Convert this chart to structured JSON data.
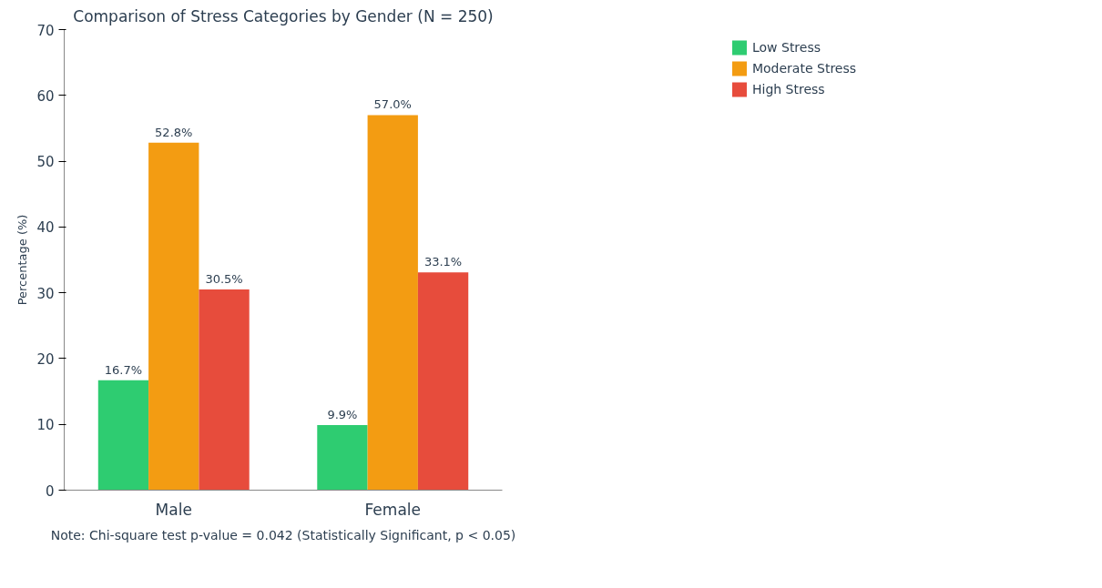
{
  "chart_data": {
    "type": "bar",
    "title": "Comparison of Stress Categories by Gender (N = 250)",
    "ylabel": "Percentage (%)",
    "categories": [
      "Male",
      "Female"
    ],
    "series": [
      {
        "name": "Low Stress",
        "color": "#2ecc71",
        "values": [
          16.7,
          9.9
        ],
        "value_labels": [
          "16.7%",
          "9.9%"
        ]
      },
      {
        "name": "Moderate Stress",
        "color": "#f39c12",
        "values": [
          52.8,
          57.0
        ],
        "value_labels": [
          "52.8%",
          "57.0%"
        ]
      },
      {
        "name": "High Stress",
        "color": "#e74c3c",
        "values": [
          30.5,
          33.1
        ],
        "value_labels": [
          "30.5%",
          "33.1%"
        ]
      }
    ],
    "ylim": [
      0,
      70
    ],
    "yticks": [
      0,
      10,
      20,
      30,
      40,
      50,
      60,
      70
    ],
    "grid": false,
    "legend": "right",
    "annotations": [
      "Note: Chi-square test p-value = 0.042 (Statistically Significant, p < 0.05)"
    ]
  }
}
